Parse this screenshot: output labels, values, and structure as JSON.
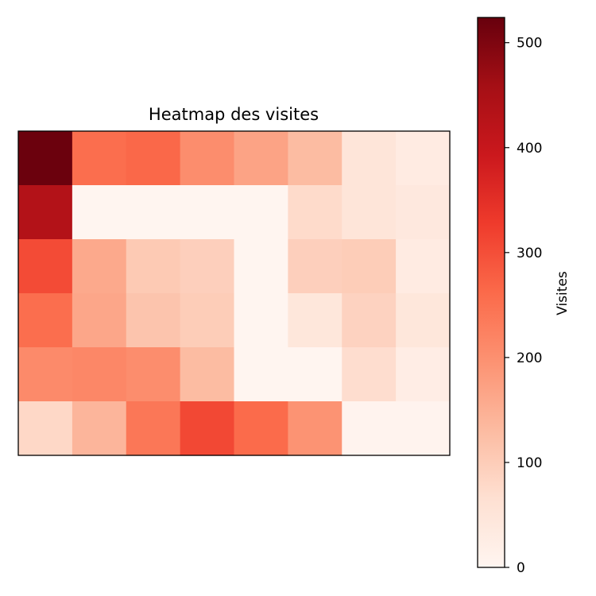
{
  "chart_data": {
    "type": "heatmap",
    "title": "Heatmap des visites",
    "rows": 6,
    "cols": 8,
    "values": [
      [
        520,
        255,
        265,
        205,
        170,
        130,
        50,
        30
      ],
      [
        435,
        0,
        0,
        0,
        0,
        75,
        50,
        40
      ],
      [
        305,
        160,
        105,
        95,
        0,
        95,
        100,
        30
      ],
      [
        255,
        165,
        115,
        100,
        0,
        45,
        90,
        45
      ],
      [
        210,
        215,
        205,
        130,
        0,
        0,
        70,
        25
      ],
      [
        80,
        140,
        240,
        310,
        260,
        195,
        5,
        5
      ]
    ],
    "colorbar": {
      "label": "Visites",
      "min": 0,
      "max": 524,
      "ticks": [
        "0",
        "100",
        "200",
        "300",
        "400",
        "500"
      ],
      "colormap": "Reds"
    },
    "xticks": [],
    "yticks": []
  }
}
